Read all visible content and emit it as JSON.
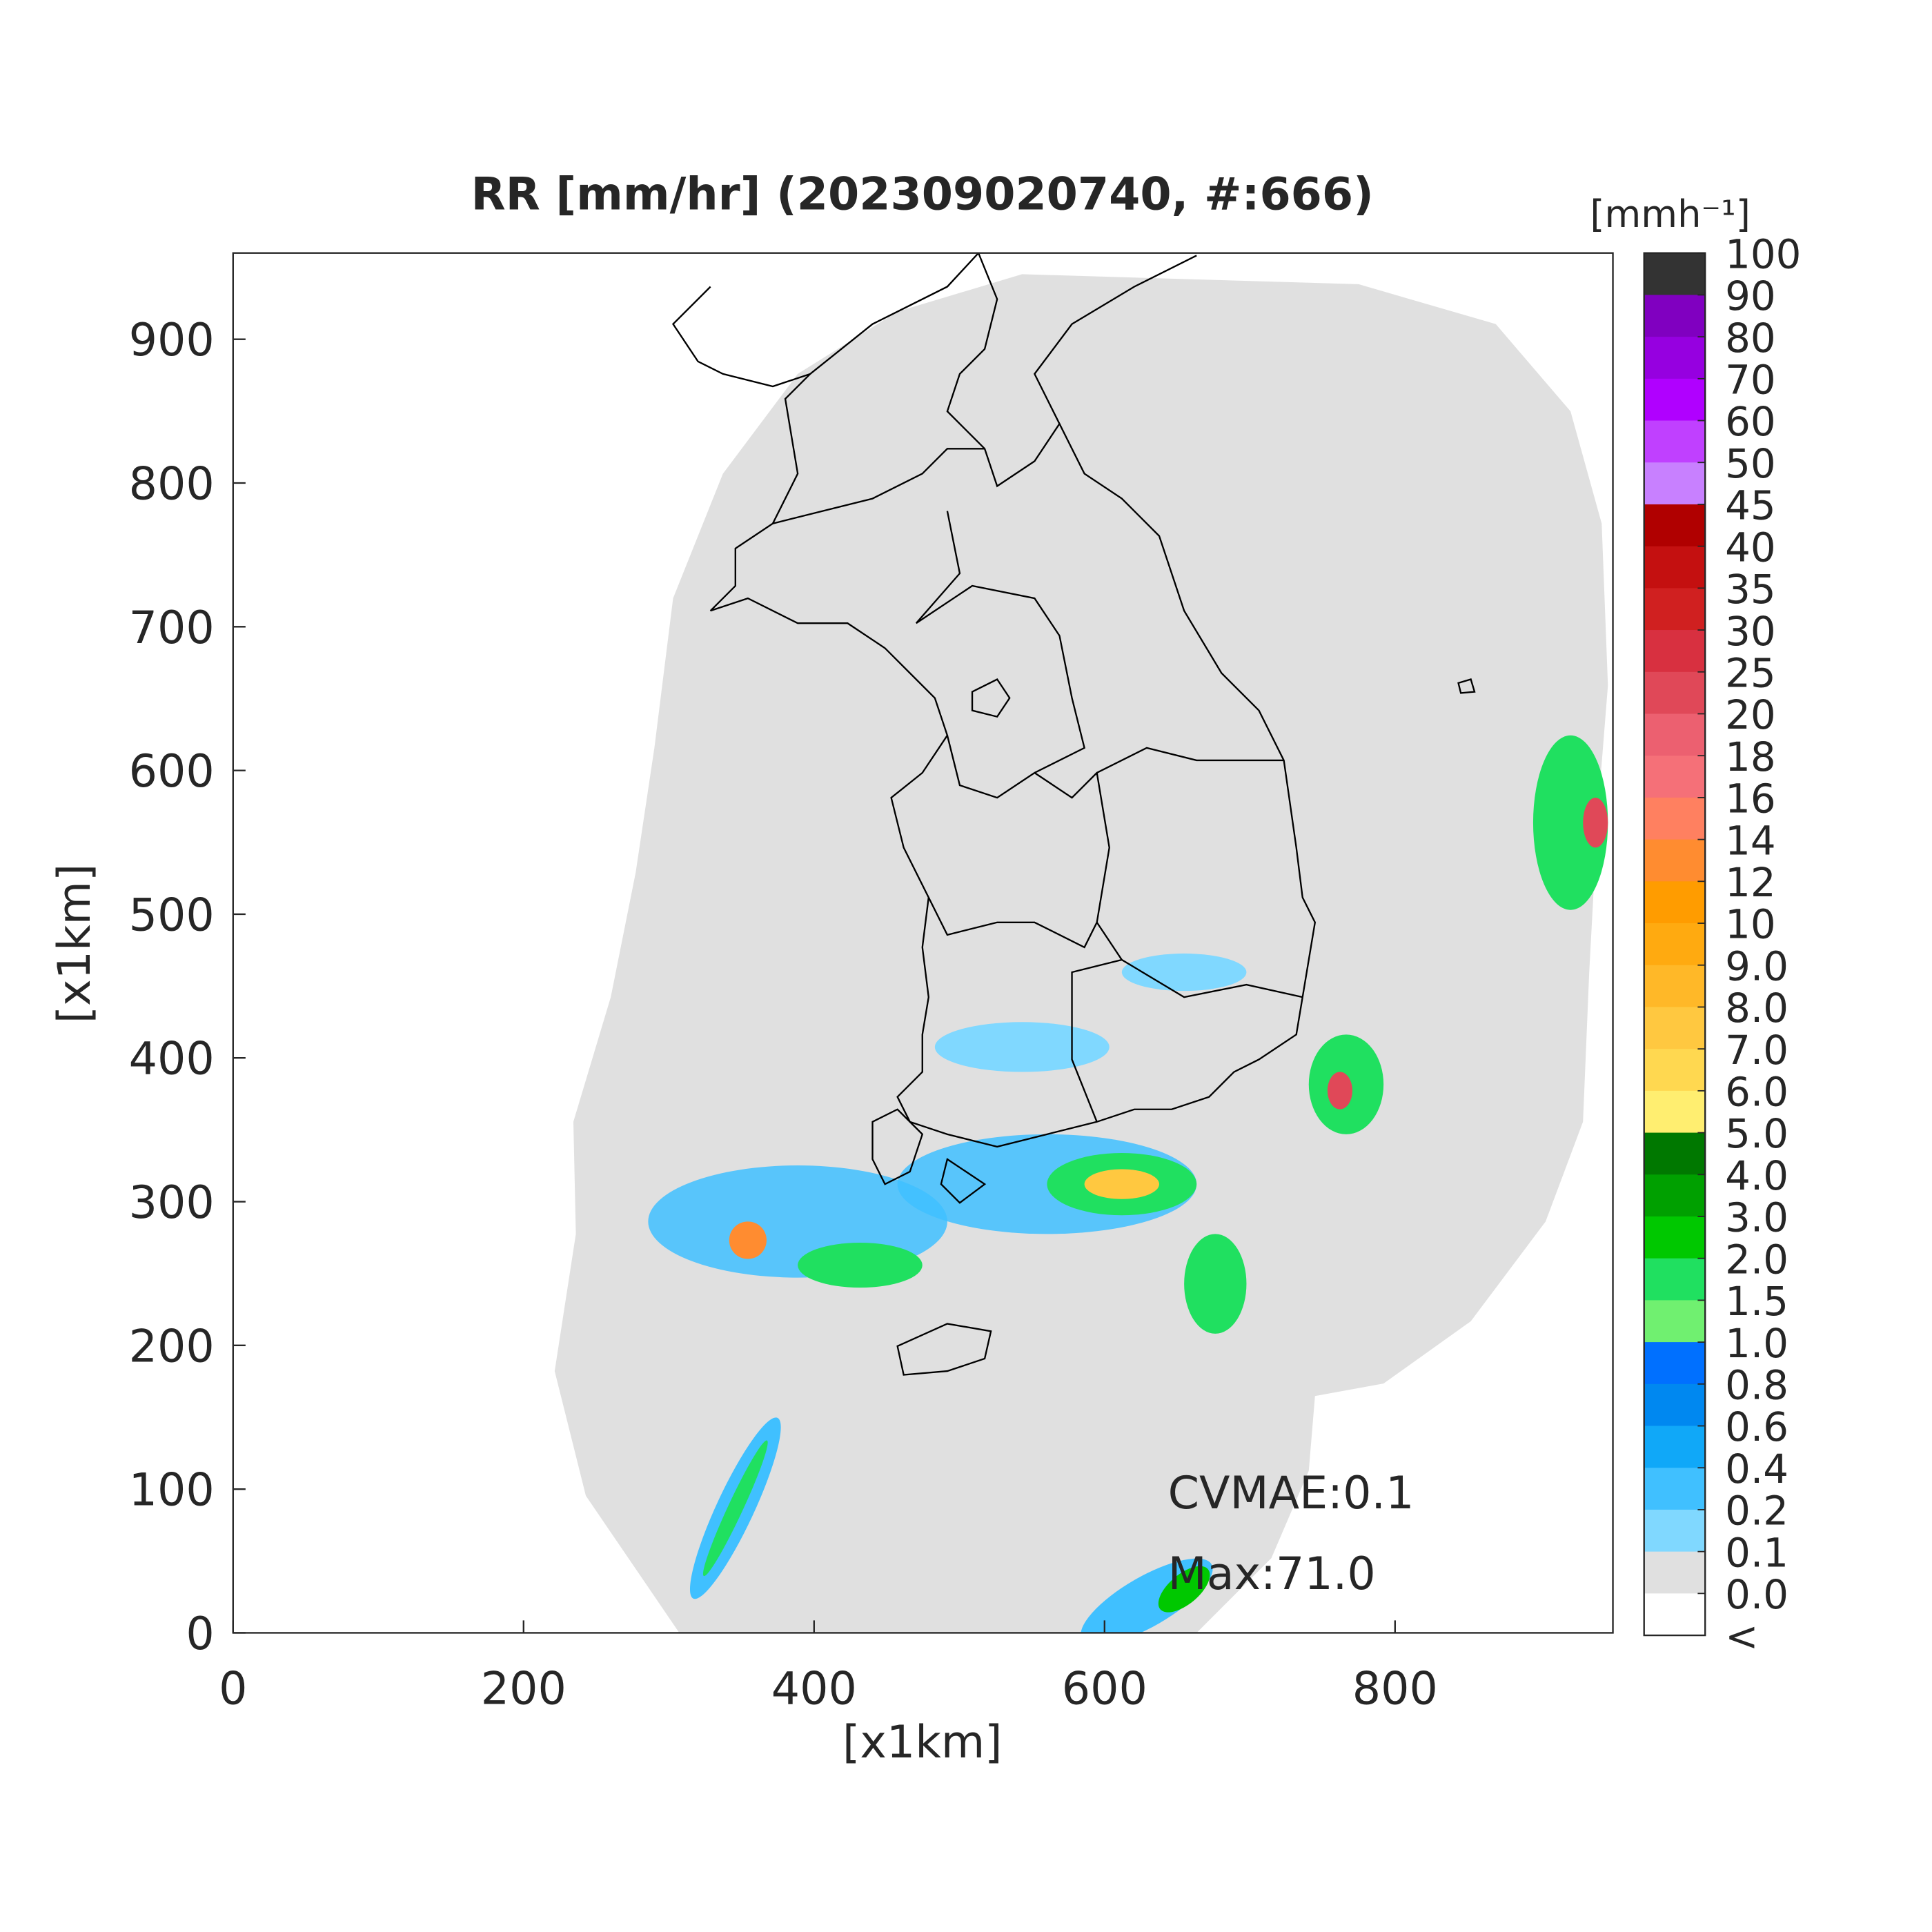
{
  "chart_data": {
    "type": "map",
    "title": "RR [mm/hr] (202309020740, #:666)",
    "xlabel": "[x1km]",
    "ylabel": "[x1km]",
    "xlim": [
      0,
      950
    ],
    "ylim": [
      0,
      960
    ],
    "xticks": [
      0,
      200,
      400,
      600,
      800
    ],
    "yticks": [
      0,
      100,
      200,
      300,
      400,
      500,
      600,
      700,
      800,
      900
    ],
    "annotations": [
      "CVMAE:0.1",
      "Max:71.0"
    ],
    "colorbar": {
      "unit": "[mmh⁻¹]",
      "ticks": [
        100,
        90,
        80,
        70,
        60,
        50,
        45,
        40,
        35,
        30,
        25,
        20,
        18,
        16,
        14,
        12,
        10,
        {
          "value": 9,
          "label": "9.0"
        },
        {
          "value": 8,
          "label": "8.0"
        },
        {
          "value": 7,
          "label": "7.0"
        },
        {
          "value": 6,
          "label": "6.0"
        },
        {
          "value": 5,
          "label": "5.0"
        },
        {
          "value": 4,
          "label": "4.0"
        },
        {
          "value": 3,
          "label": "3.0"
        },
        {
          "value": 2,
          "label": "2.0"
        },
        1.5,
        {
          "value": 1,
          "label": "1.0"
        },
        0.8,
        0.6,
        0.4,
        0.2,
        0.1,
        {
          "value": 0,
          "label": "0.0"
        }
      ],
      "under_label": "<",
      "colors": [
        "#333333",
        "#8000c0",
        "#9600e0",
        "#b000ff",
        "#c040ff",
        "#c880ff",
        "#b00000",
        "#c41010",
        "#d02020",
        "#d83040",
        "#e04858",
        "#ec6070",
        "#f57078",
        "#ff8060",
        "#ff8c30",
        "#ff9c00",
        "#ffaa10",
        "#ffb828",
        "#ffc840",
        "#ffd850",
        "#ffee70",
        "#007800",
        "#00a000",
        "#00c800",
        "#20e060",
        "#70f070",
        "#0070ff",
        "#0088f0",
        "#10a8f8",
        "#40c0ff",
        "#80d8ff",
        "#e0e0e0",
        "#ffffff"
      ]
    }
  }
}
